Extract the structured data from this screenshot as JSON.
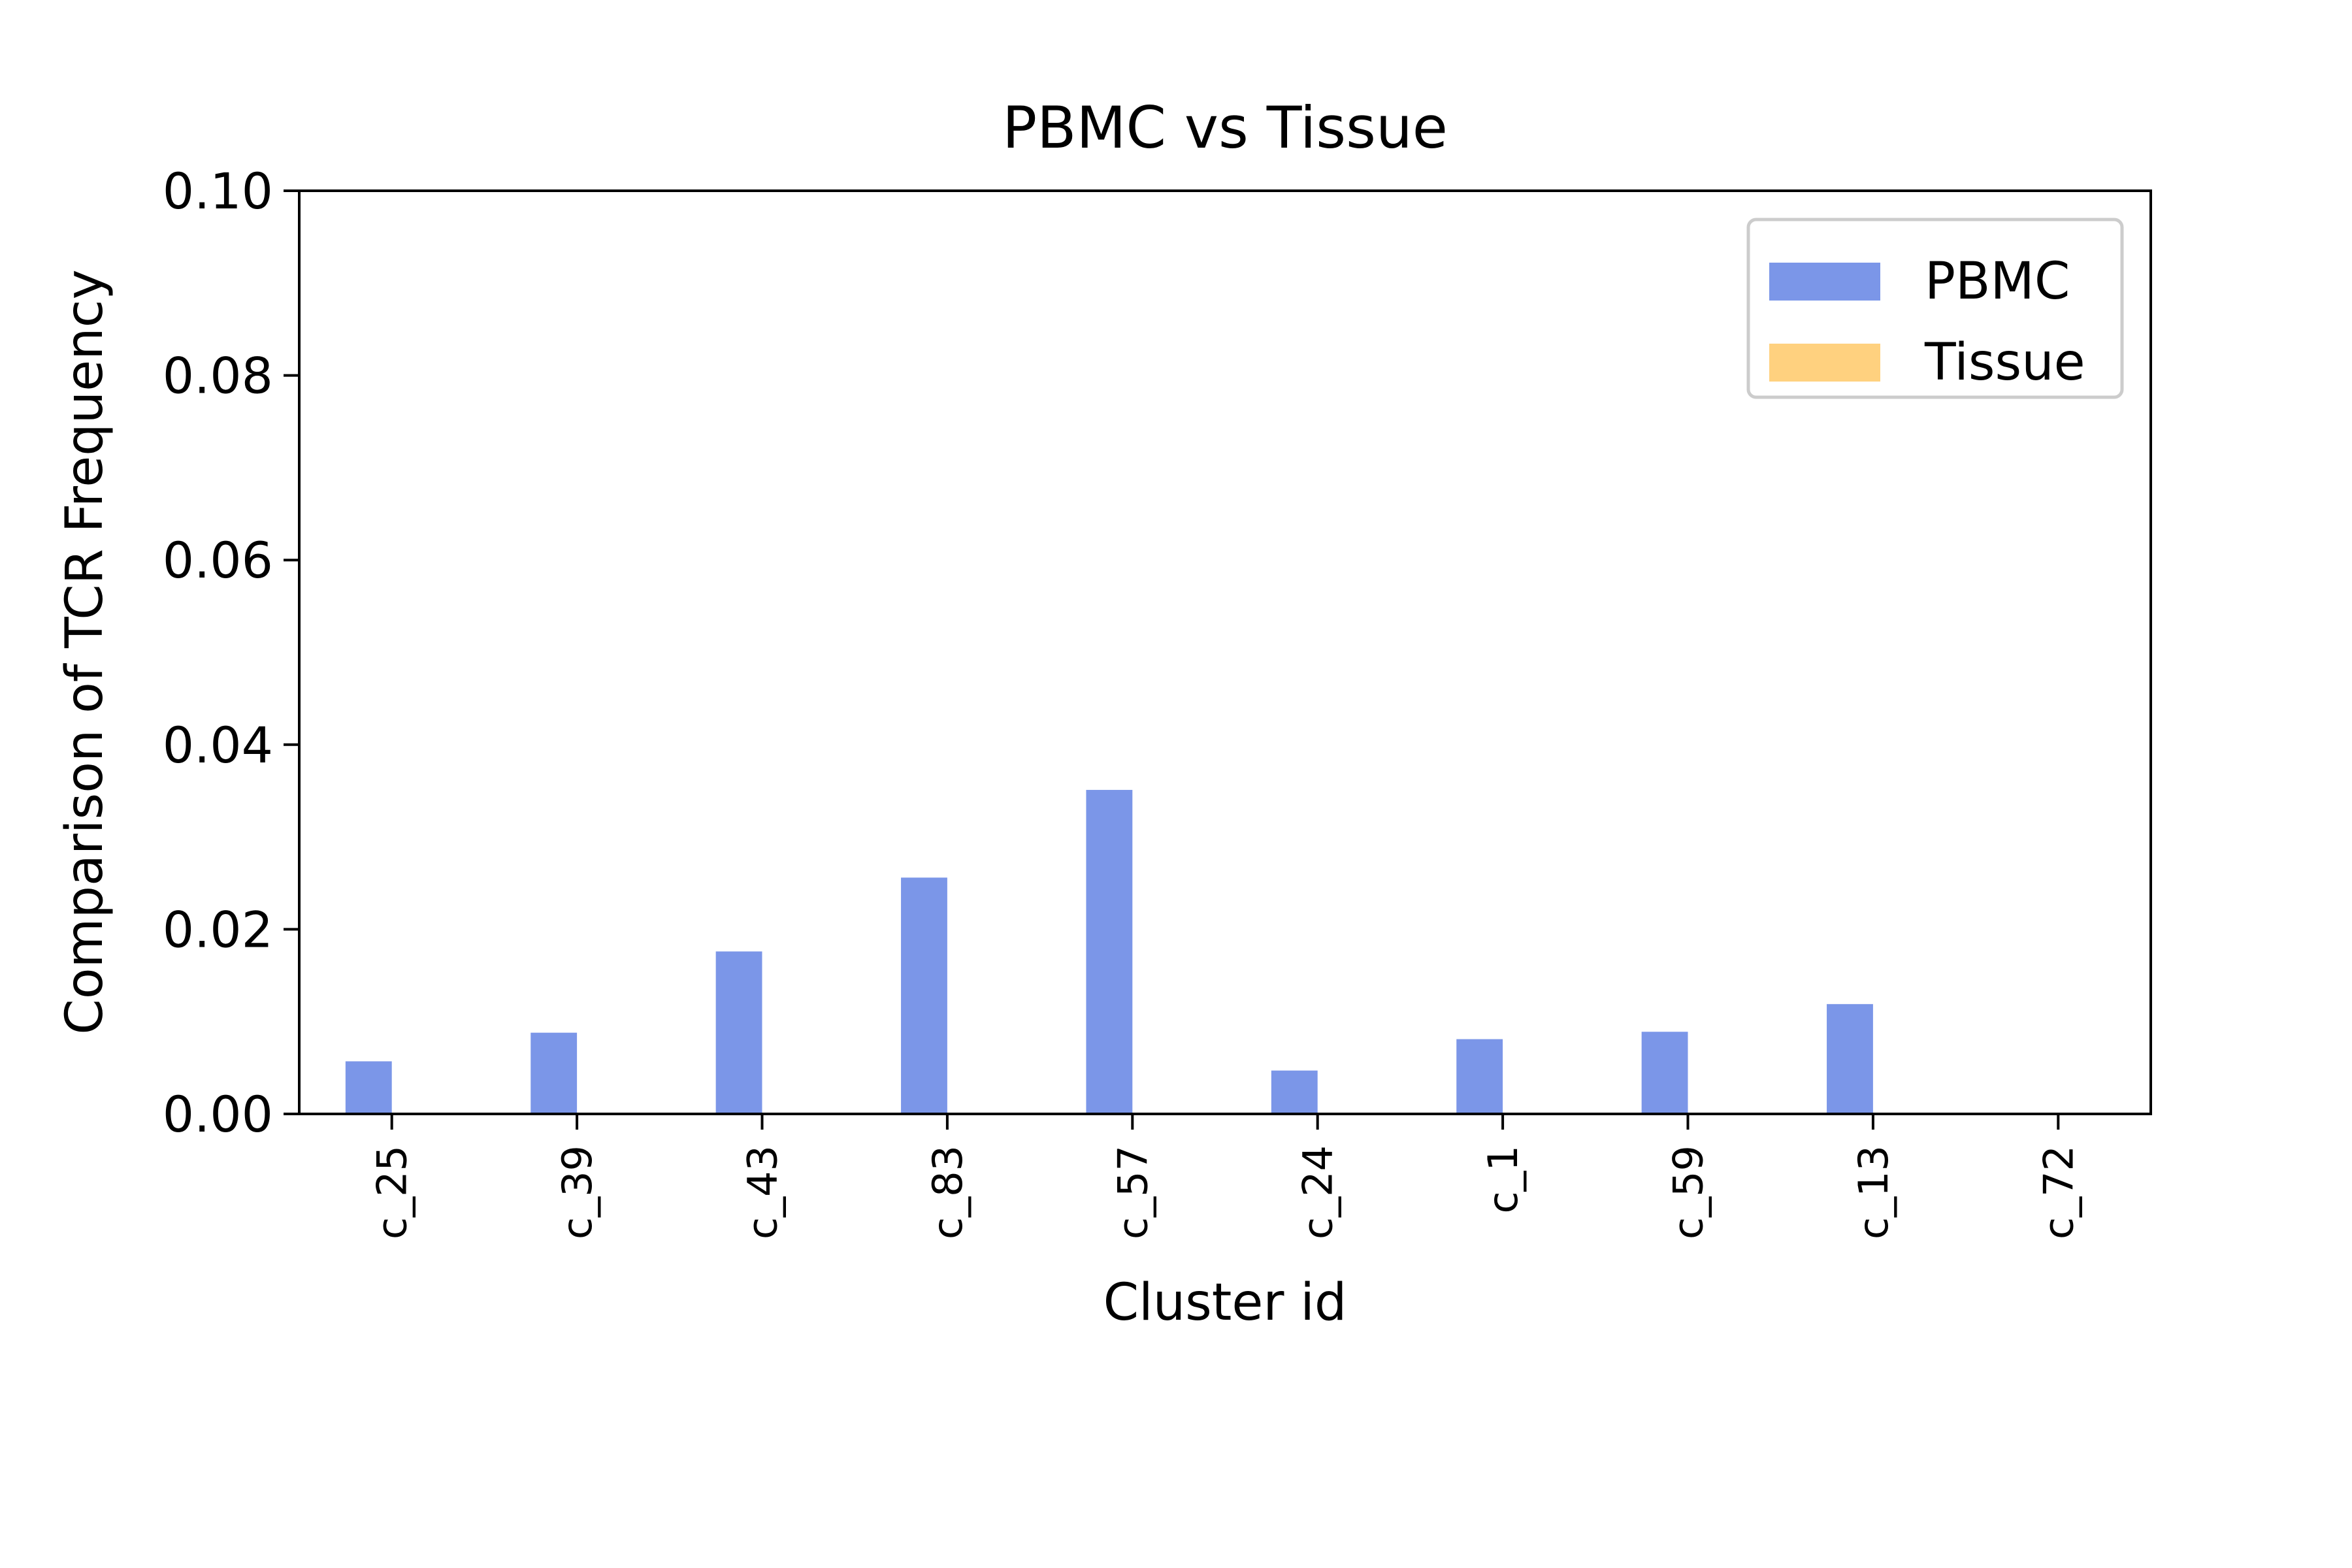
{
  "chart_data": {
    "type": "bar",
    "title": "PBMC vs Tissue",
    "xlabel": "Cluster id",
    "ylabel": "Comparison of TCR Frequency",
    "categories": [
      "c_25",
      "c_39",
      "c_43",
      "c_83",
      "c_57",
      "c_24",
      "c_1",
      "c_59",
      "c_13",
      "c_72"
    ],
    "series": [
      {
        "name": "PBMC",
        "color": "#7b96e8",
        "values": [
          0.0057,
          0.0088,
          0.0176,
          0.0256,
          0.0351,
          0.0047,
          0.0081,
          0.0089,
          0.0119,
          0.0
        ]
      },
      {
        "name": "Tissue",
        "color": "#ffd17f",
        "values": [
          0,
          0,
          0,
          0,
          0,
          0,
          0,
          0,
          0,
          0
        ]
      }
    ],
    "ylim": [
      0,
      0.1
    ],
    "yticks": [
      "0.00",
      "0.02",
      "0.04",
      "0.06",
      "0.08",
      "0.10"
    ],
    "grid": false,
    "legend_position": "top-right"
  }
}
